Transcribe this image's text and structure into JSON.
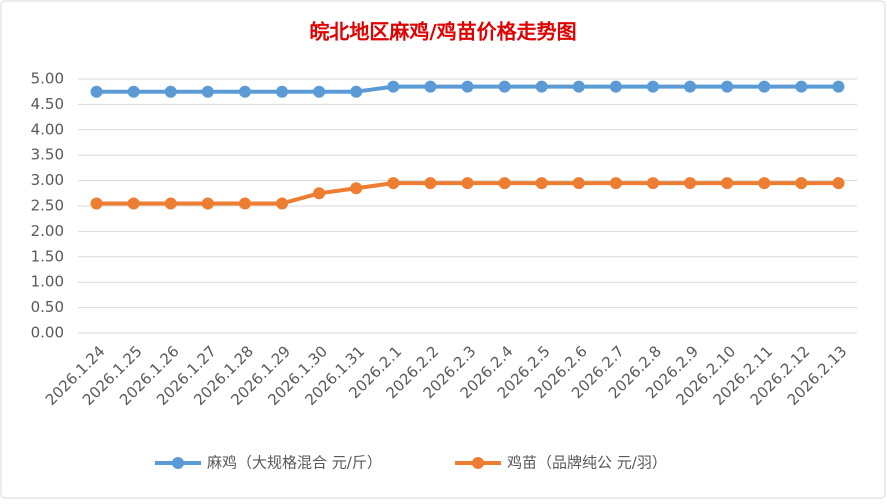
{
  "chart_data": {
    "type": "line",
    "title": "皖北地区麻鸡/鸡苗价格走势图",
    "categories": [
      "2026.1.24",
      "2026.1.25",
      "2026.1.26",
      "2026.1.27",
      "2026.1.28",
      "2026.1.29",
      "2026.1.30",
      "2026.1.31",
      "2026.2.1",
      "2026.2.2",
      "2026.2.3",
      "2026.2.4",
      "2026.2.5",
      "2026.2.6",
      "2026.2.7",
      "2026.2.8",
      "2026.2.9",
      "2026.2.10",
      "2026.2.11",
      "2026.2.12",
      "2026.2.13"
    ],
    "series": [
      {
        "name": "麻鸡（大规格混合 元/斤）",
        "color": "#5b9bd5",
        "values": [
          4.75,
          4.75,
          4.75,
          4.75,
          4.75,
          4.75,
          4.75,
          4.75,
          4.85,
          4.85,
          4.85,
          4.85,
          4.85,
          4.85,
          4.85,
          4.85,
          4.85,
          4.85,
          4.85,
          4.85,
          4.85
        ]
      },
      {
        "name": "鸡苗（品牌纯公 元/羽）",
        "color": "#ed7d31",
        "values": [
          2.55,
          2.55,
          2.55,
          2.55,
          2.55,
          2.55,
          2.75,
          2.85,
          2.95,
          2.95,
          2.95,
          2.95,
          2.95,
          2.95,
          2.95,
          2.95,
          2.95,
          2.95,
          2.95,
          2.95,
          2.95
        ]
      }
    ],
    "ylim": [
      0,
      5
    ],
    "yticks": [
      {
        "value": 0,
        "label": "0.00"
      },
      {
        "value": 0.5,
        "label": "0.50"
      },
      {
        "value": 1,
        "label": "1.00"
      },
      {
        "value": 1.5,
        "label": "1.50"
      },
      {
        "value": 2,
        "label": "2.00"
      },
      {
        "value": 2.5,
        "label": "2.50"
      },
      {
        "value": 3,
        "label": "3.00"
      },
      {
        "value": 3.5,
        "label": "3.50"
      },
      {
        "value": 4,
        "label": "4.00"
      },
      {
        "value": 4.5,
        "label": "4.50"
      },
      {
        "value": 5,
        "label": "5.00"
      }
    ],
    "grid": true,
    "legend": "bottom"
  }
}
